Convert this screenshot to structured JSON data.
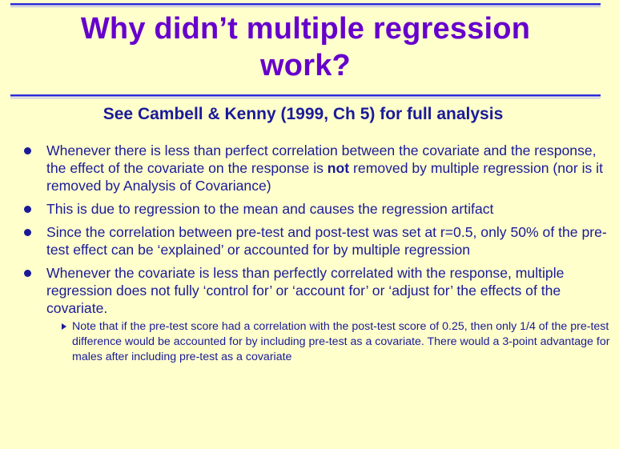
{
  "slide": {
    "title_line1": "Why didn’t multiple regression",
    "title_line2": "work?",
    "subtitle": "See Cambell & Kenny (1999, Ch 5) for full analysis",
    "bullets": [
      {
        "before": "Whenever there is less than perfect correlation between the covariate and the response, the effect of the covariate on the response is ",
        "bold": "not",
        "after": " removed by multiple regression (nor is it removed by Analysis of Covariance)"
      },
      {
        "text": "This is due to regression to the mean and causes the regression artifact"
      },
      {
        "text": "Since the correlation between pre-test and post-test was set at r=0.5, only 50% of the pre-test effect can be ‘explained’ or accounted for by multiple regression"
      },
      {
        "text": "Whenever the covariate is less than perfectly correlated with the response, multiple regression does not fully ‘control for’ or ‘account for’ or ‘adjust for’ the effects of the covariate."
      }
    ],
    "sub_bullet": "Note that if the pre-test score had a correlation with the post-test score of 0.25, then only 1/4 of the pre-test difference would be accounted for by including pre-test as a covariate.  There would a 3-point advantage for males after including pre-test as a covariate"
  }
}
